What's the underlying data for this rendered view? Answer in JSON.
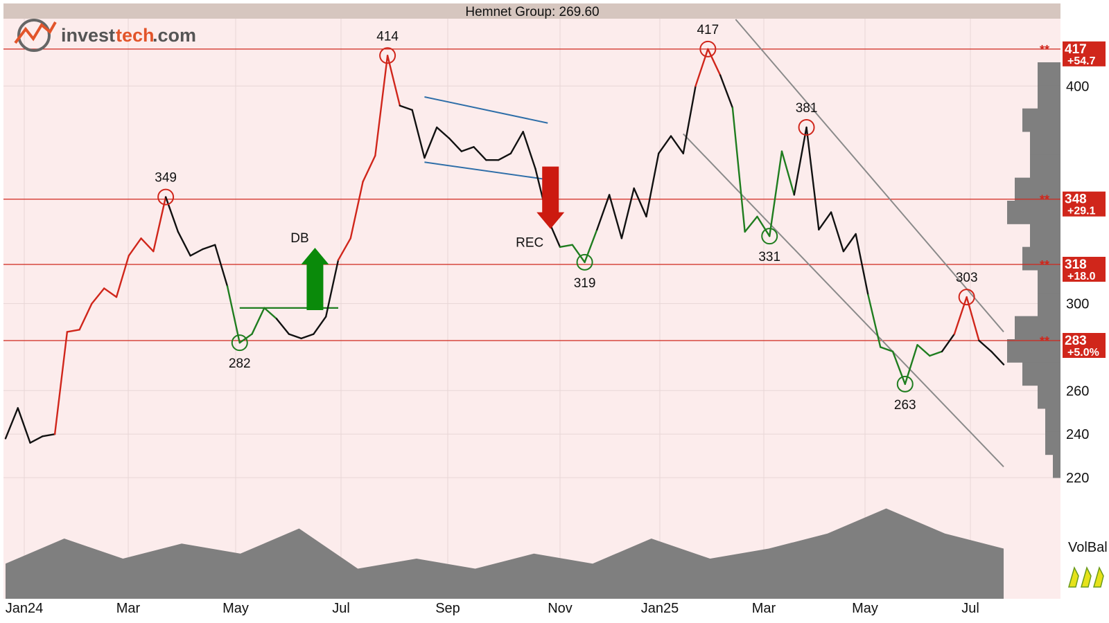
{
  "header": {
    "title": "Hemnet Group: 269.60"
  },
  "logo": {
    "part1": "invest",
    "part2": "tech",
    "part3": ".com"
  },
  "colors": {
    "background": "#fcecec",
    "grid": "#e7d6d6",
    "header_bar": "#d6c6bf",
    "price_line": "#111111",
    "uptrend": "#d0261b",
    "downtrend": "#1f7d1f",
    "level": "#d0261b",
    "channel": "#8a8a8a",
    "rectangle": "#2e6ea8",
    "volume": "#7f7f7f",
    "buy_arrow": "#0a8a0a",
    "sell_arrow": "#cc1a10"
  },
  "chart_data": {
    "type": "line",
    "title": "Hemnet Group: 269.60",
    "x_ticks": [
      "Jan24",
      "Mar",
      "May",
      "Jul",
      "Sep",
      "Nov",
      "Jan25",
      "Mar",
      "May",
      "Jul"
    ],
    "y_ticks": [
      "220",
      "240",
      "260",
      "300",
      "400"
    ],
    "ylim": [
      220,
      430
    ],
    "price_series": [
      {
        "x": 0,
        "y": 238
      },
      {
        "x": 1,
        "y": 252
      },
      {
        "x": 2,
        "y": 236
      },
      {
        "x": 3,
        "y": 239
      },
      {
        "x": 4,
        "y": 240
      },
      {
        "x": 5,
        "y": 287
      },
      {
        "x": 6,
        "y": 288
      },
      {
        "x": 7,
        "y": 300
      },
      {
        "x": 8,
        "y": 307
      },
      {
        "x": 9,
        "y": 303
      },
      {
        "x": 10,
        "y": 322
      },
      {
        "x": 11,
        "y": 330
      },
      {
        "x": 12,
        "y": 324
      },
      {
        "x": 13,
        "y": 349
      },
      {
        "x": 14,
        "y": 333
      },
      {
        "x": 15,
        "y": 322
      },
      {
        "x": 16,
        "y": 325
      },
      {
        "x": 17,
        "y": 327
      },
      {
        "x": 18,
        "y": 308
      },
      {
        "x": 19,
        "y": 282
      },
      {
        "x": 20,
        "y": 286
      },
      {
        "x": 21,
        "y": 298
      },
      {
        "x": 22,
        "y": 293
      },
      {
        "x": 23,
        "y": 286
      },
      {
        "x": 24,
        "y": 284
      },
      {
        "x": 25,
        "y": 286
      },
      {
        "x": 26,
        "y": 294
      },
      {
        "x": 27,
        "y": 320
      },
      {
        "x": 28,
        "y": 330
      },
      {
        "x": 29,
        "y": 356
      },
      {
        "x": 30,
        "y": 368
      },
      {
        "x": 31,
        "y": 414
      },
      {
        "x": 32,
        "y": 391
      },
      {
        "x": 33,
        "y": 389
      },
      {
        "x": 34,
        "y": 367
      },
      {
        "x": 35,
        "y": 381
      },
      {
        "x": 36,
        "y": 376
      },
      {
        "x": 37,
        "y": 370
      },
      {
        "x": 38,
        "y": 372
      },
      {
        "x": 39,
        "y": 366
      },
      {
        "x": 40,
        "y": 366
      },
      {
        "x": 41,
        "y": 369
      },
      {
        "x": 42,
        "y": 379
      },
      {
        "x": 43,
        "y": 362
      },
      {
        "x": 44,
        "y": 339
      },
      {
        "x": 45,
        "y": 326
      },
      {
        "x": 46,
        "y": 327
      },
      {
        "x": 47,
        "y": 319
      },
      {
        "x": 48,
        "y": 334
      },
      {
        "x": 49,
        "y": 350
      },
      {
        "x": 50,
        "y": 330
      },
      {
        "x": 51,
        "y": 353
      },
      {
        "x": 52,
        "y": 340
      },
      {
        "x": 53,
        "y": 369
      },
      {
        "x": 54,
        "y": 377
      },
      {
        "x": 55,
        "y": 369
      },
      {
        "x": 56,
        "y": 400
      },
      {
        "x": 57,
        "y": 417
      },
      {
        "x": 58,
        "y": 405
      },
      {
        "x": 59,
        "y": 390
      },
      {
        "x": 60,
        "y": 333
      },
      {
        "x": 61,
        "y": 340
      },
      {
        "x": 62,
        "y": 331
      },
      {
        "x": 63,
        "y": 370
      },
      {
        "x": 64,
        "y": 350
      },
      {
        "x": 65,
        "y": 381
      },
      {
        "x": 66,
        "y": 334
      },
      {
        "x": 67,
        "y": 342
      },
      {
        "x": 68,
        "y": 324
      },
      {
        "x": 69,
        "y": 332
      },
      {
        "x": 70,
        "y": 304
      },
      {
        "x": 71,
        "y": 280
      },
      {
        "x": 72,
        "y": 278
      },
      {
        "x": 73,
        "y": 263
      },
      {
        "x": 74,
        "y": 281
      },
      {
        "x": 75,
        "y": 276
      },
      {
        "x": 76,
        "y": 278
      },
      {
        "x": 77,
        "y": 286
      },
      {
        "x": 78,
        "y": 303
      },
      {
        "x": 79,
        "y": 283
      },
      {
        "x": 80,
        "y": 278
      },
      {
        "x": 81,
        "y": 272
      }
    ],
    "resistance_levels": [
      {
        "value": 417,
        "label": "417",
        "change": "+54.7"
      },
      {
        "value": 348,
        "label": "348",
        "change": "+29.1"
      },
      {
        "value": 318,
        "label": "318",
        "change": "+18.0"
      },
      {
        "value": 283,
        "label": "283",
        "change": "+5.0%"
      }
    ],
    "annotations": [
      {
        "label": "349",
        "date_index": 13,
        "value": 349,
        "type": "top"
      },
      {
        "label": "282",
        "date_index": 19,
        "value": 282,
        "type": "bottom"
      },
      {
        "label": "414",
        "date_index": 31,
        "value": 414,
        "type": "top"
      },
      {
        "label": "319",
        "date_index": 47,
        "value": 319,
        "type": "bottom"
      },
      {
        "label": "417",
        "date_index": 57,
        "value": 417,
        "type": "top"
      },
      {
        "label": "331",
        "date_index": 62,
        "value": 331,
        "type": "bottom"
      },
      {
        "label": "381",
        "date_index": 65,
        "value": 381,
        "type": "top"
      },
      {
        "label": "263",
        "date_index": 73,
        "value": 263,
        "type": "bottom"
      },
      {
        "label": "303",
        "date_index": 78,
        "value": 303,
        "type": "top"
      }
    ],
    "signals": [
      {
        "label": "DB",
        "direction": "buy"
      },
      {
        "label": "REC",
        "direction": "sell"
      }
    ],
    "indicator": {
      "label": "VolBal"
    },
    "volume_profile": [
      3,
      3,
      5,
      4,
      4,
      6,
      7,
      4,
      5,
      3,
      3,
      6,
      7,
      5,
      3,
      2,
      2,
      1
    ],
    "volume_balance": [
      0.35,
      0.6,
      0.4,
      0.55,
      0.45,
      0.7,
      0.3,
      0.4,
      0.3,
      0.45,
      0.35,
      0.6,
      0.4,
      0.5,
      0.65,
      0.9,
      0.65,
      0.5
    ],
    "grid": true
  }
}
